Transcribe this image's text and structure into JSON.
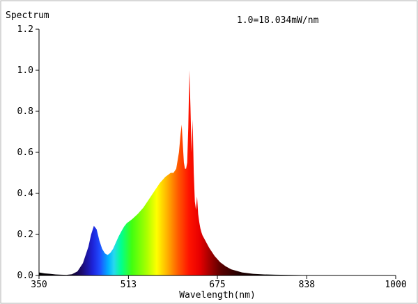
{
  "chart_data": {
    "type": "area",
    "title": "Spectrum",
    "annotation": "1.0=18.034mW/nm",
    "xlabel": "Wavelength(nm)",
    "ylabel": "",
    "xlim": [
      350,
      1000
    ],
    "ylim": [
      0,
      1.2
    ],
    "x_ticks": [
      350,
      513,
      675,
      838,
      1000
    ],
    "y_ticks": [
      0.0,
      0.2,
      0.4,
      0.6,
      0.8,
      1.0,
      1.2
    ],
    "x_tick_labels": [
      "350",
      "513",
      "675",
      "838",
      "1000"
    ],
    "y_tick_labels": [
      "0.0",
      "0.2",
      "0.4",
      "0.6",
      "0.8",
      "1.0",
      "1.2"
    ],
    "fill": "visible-spectrum gradient",
    "grid": false,
    "series": [
      {
        "x": [
          350,
          360,
          370,
          380,
          390,
          400,
          410,
          420,
          430,
          440,
          445,
          450,
          455,
          460,
          465,
          470,
          475,
          480,
          485,
          490,
          495,
          500,
          505,
          510,
          515,
          520,
          530,
          540,
          550,
          560,
          570,
          580,
          590,
          595,
          600,
          605,
          608,
          610,
          612,
          614,
          616,
          618,
          620,
          622,
          624,
          626,
          628,
          630,
          632,
          634,
          636,
          638,
          640,
          642,
          644,
          646,
          648,
          650,
          655,
          660,
          670,
          680,
          690,
          700,
          720,
          740,
          760,
          780,
          800,
          820,
          850,
          900,
          950,
          1000
        ],
        "values": [
          0.015,
          0.01,
          0.008,
          0.005,
          0.004,
          0.003,
          0.006,
          0.02,
          0.06,
          0.14,
          0.2,
          0.242,
          0.225,
          0.17,
          0.13,
          0.108,
          0.1,
          0.11,
          0.13,
          0.16,
          0.19,
          0.215,
          0.238,
          0.255,
          0.265,
          0.275,
          0.3,
          0.33,
          0.37,
          0.41,
          0.45,
          0.48,
          0.5,
          0.5,
          0.52,
          0.6,
          0.69,
          0.735,
          0.64,
          0.55,
          0.52,
          0.52,
          0.55,
          0.72,
          1.0,
          0.82,
          0.6,
          0.76,
          0.5,
          0.36,
          0.32,
          0.385,
          0.3,
          0.26,
          0.23,
          0.21,
          0.195,
          0.185,
          0.16,
          0.135,
          0.095,
          0.065,
          0.045,
          0.03,
          0.015,
          0.008,
          0.005,
          0.004,
          0.003,
          0.002,
          0.001,
          0.0,
          0.0,
          0.0
        ]
      }
    ]
  }
}
